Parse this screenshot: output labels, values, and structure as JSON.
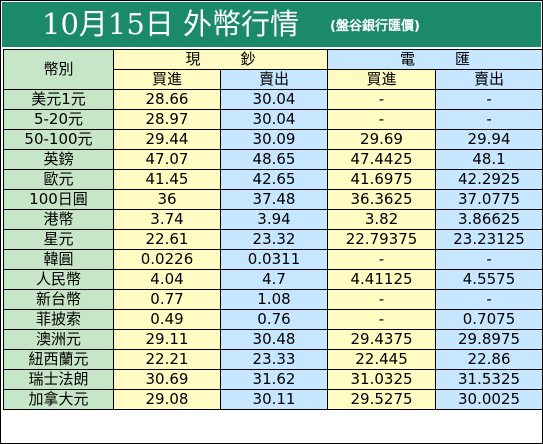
{
  "banner": {
    "title": "10月15日 外幣行情",
    "source": "(盤谷銀行匯價)"
  },
  "table": {
    "corner_label": "幣別",
    "groups": [
      "現鈔",
      "電匯"
    ],
    "subheaders": [
      "買進",
      "賣出",
      "買進",
      "賣出"
    ],
    "rows": [
      {
        "currency": "美元1元",
        "cash_buy": "28.66",
        "cash_sell": "30.04",
        "tt_buy": "-",
        "tt_sell": "-"
      },
      {
        "currency": "5-20元",
        "cash_buy": "28.97",
        "cash_sell": "30.04",
        "tt_buy": "-",
        "tt_sell": "-"
      },
      {
        "currency": "50-100元",
        "cash_buy": "29.44",
        "cash_sell": "30.09",
        "tt_buy": "29.69",
        "tt_sell": "29.94"
      },
      {
        "currency": "英鎊",
        "cash_buy": "47.07",
        "cash_sell": "48.65",
        "tt_buy": "47.4425",
        "tt_sell": "48.1"
      },
      {
        "currency": "歐元",
        "cash_buy": "41.45",
        "cash_sell": "42.65",
        "tt_buy": "41.6975",
        "tt_sell": "42.2925"
      },
      {
        "currency": "100日圓",
        "cash_buy": "36",
        "cash_sell": "37.48",
        "tt_buy": "36.3625",
        "tt_sell": "37.0775"
      },
      {
        "currency": "港幣",
        "cash_buy": "3.74",
        "cash_sell": "3.94",
        "tt_buy": "3.82",
        "tt_sell": "3.86625"
      },
      {
        "currency": "星元",
        "cash_buy": "22.61",
        "cash_sell": "23.32",
        "tt_buy": "22.79375",
        "tt_sell": "23.23125"
      },
      {
        "currency": "韓圓",
        "cash_buy": "0.0226",
        "cash_sell": "0.0311",
        "tt_buy": "-",
        "tt_sell": "-"
      },
      {
        "currency": "人民幣",
        "cash_buy": "4.04",
        "cash_sell": "4.7",
        "tt_buy": "4.41125",
        "tt_sell": "4.5575"
      },
      {
        "currency": "新台幣",
        "cash_buy": "0.77",
        "cash_sell": "1.08",
        "tt_buy": "-",
        "tt_sell": "-"
      },
      {
        "currency": "菲披索",
        "cash_buy": "0.49",
        "cash_sell": "0.76",
        "tt_buy": "-",
        "tt_sell": "0.7075"
      },
      {
        "currency": "澳洲元",
        "cash_buy": "29.11",
        "cash_sell": "30.48",
        "tt_buy": "29.4375",
        "tt_sell": "29.8975"
      },
      {
        "currency": "紐西蘭元",
        "cash_buy": "22.21",
        "cash_sell": "23.33",
        "tt_buy": "22.445",
        "tt_sell": "22.86"
      },
      {
        "currency": "瑞士法朗",
        "cash_buy": "30.69",
        "cash_sell": "31.62",
        "tt_buy": "31.0325",
        "tt_sell": "31.5325"
      },
      {
        "currency": "加拿大元",
        "cash_buy": "29.08",
        "cash_sell": "30.11",
        "tt_buy": "29.5275",
        "tt_sell": "30.0025"
      }
    ]
  },
  "colors": {
    "banner": "#1a8a6a",
    "label_column": "#c7e6c7",
    "cash_columns": "#fffbc2",
    "wire_columns": "#c7e6ff"
  }
}
